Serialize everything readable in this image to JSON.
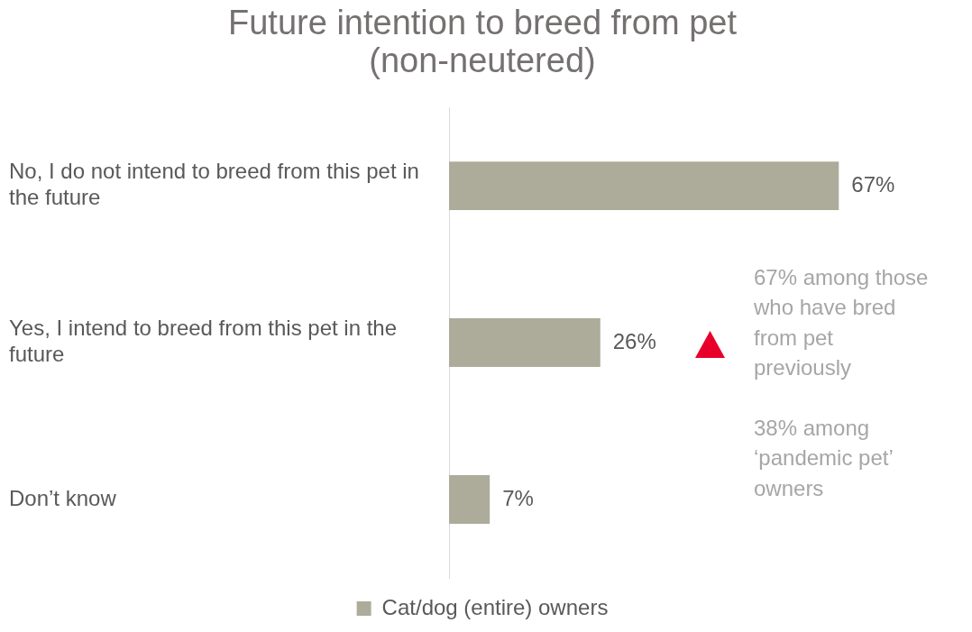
{
  "chart_data": {
    "type": "bar",
    "orientation": "horizontal",
    "title": "Future intention to breed from pet\n(non-neutered)",
    "categories": [
      "No, I do not intend to breed from this pet in the future",
      "Yes, I intend to breed from this pet in the future",
      "Don’t know"
    ],
    "series": [
      {
        "name": "Cat/dog (entire) owners",
        "color": "#adac9b",
        "values": [
          67,
          26,
          7
        ],
        "value_labels": [
          "67%",
          "26%",
          "7%"
        ]
      }
    ],
    "annotations": [
      "67% among those\nwho have bred\nfrom pet\npreviously",
      "38% among\n‘pandemic pet’\nowners"
    ],
    "legend": "bottom",
    "grid": false,
    "tick_labels": "y"
  }
}
